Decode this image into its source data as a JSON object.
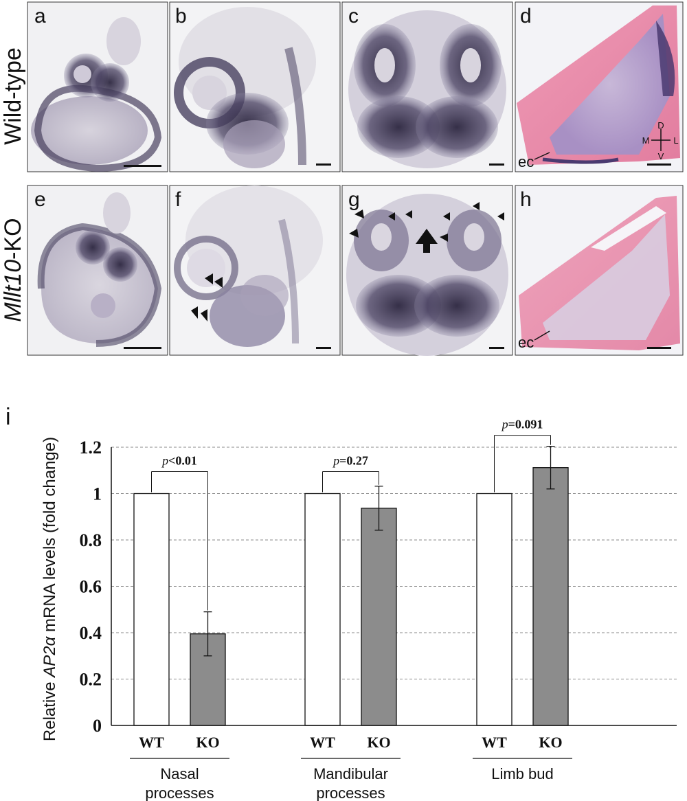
{
  "panels": {
    "row_labels": {
      "top": "Wild-type",
      "bottom_italic": "Mllt10",
      "bottom_suffix": "-KO"
    },
    "letters": [
      "a",
      "b",
      "c",
      "d",
      "e",
      "f",
      "g",
      "h"
    ],
    "annotations": {
      "ec_top": "ec",
      "ec_bottom": "ec"
    },
    "axis_cross": {
      "dorsal": "D",
      "ventral": "V",
      "medial": "M",
      "lateral": "L"
    },
    "colors": {
      "stain": "#3a3350",
      "eosin": "#e889a8",
      "background": "#f2f2f4"
    }
  },
  "chart_panel_letter": "i",
  "chart_data": {
    "type": "bar",
    "ylabel_prefix": "Relative ",
    "ylabel_italic": "AP2α",
    "ylabel_suffix": " mRNA levels (fold change)",
    "ylim": [
      0,
      1.2
    ],
    "yticks": [
      "0",
      "0.2",
      "0.4",
      "0.6",
      "0.8",
      "1",
      "1.2"
    ],
    "ytick_values": [
      0,
      0.2,
      0.4,
      0.6,
      0.8,
      1,
      1.2
    ],
    "grid": true,
    "groups": [
      {
        "label": "Nasal\nprocesses",
        "label_lines": [
          "Nasal",
          "processes"
        ],
        "bars": [
          {
            "name": "WT",
            "value": 1.0,
            "error": 0
          },
          {
            "name": "KO",
            "value": 0.395,
            "error": 0.095
          }
        ],
        "p_prefix": "p",
        "p_value": "<0.01"
      },
      {
        "label": "Mandibular\nprocesses",
        "label_lines": [
          "Mandibular",
          "processes"
        ],
        "bars": [
          {
            "name": "WT",
            "value": 1.0,
            "error": 0
          },
          {
            "name": "KO",
            "value": 0.937,
            "error": 0.095
          }
        ],
        "p_prefix": "p",
        "p_value": "=0.27"
      },
      {
        "label": "Limb bud",
        "label_lines": [
          "Limb bud"
        ],
        "bars": [
          {
            "name": "WT",
            "value": 1.0,
            "error": 0
          },
          {
            "name": "KO",
            "value": 1.112,
            "error": 0.092
          }
        ],
        "p_prefix": "p",
        "p_value": "=0.091"
      }
    ],
    "colors": {
      "WT": "#ffffff",
      "KO": "#8c8c8c"
    }
  }
}
